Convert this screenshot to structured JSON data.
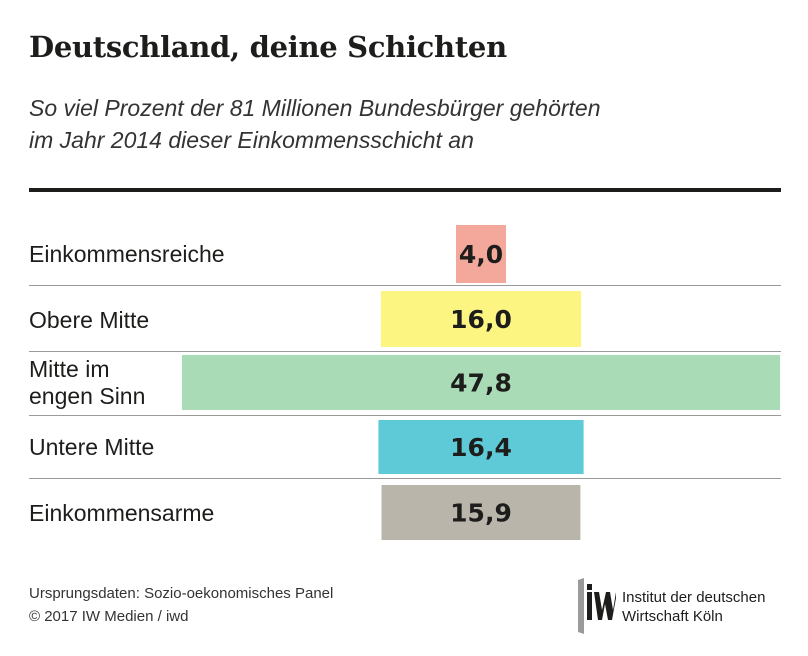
{
  "header": {
    "title": "Deutschland, deine Schichten",
    "subtitle_line1": "So viel Prozent der 81 Millionen Bundesbürger gehörten",
    "subtitle_line2": "im Jahr 2014 dieser Einkommensschicht an"
  },
  "chart_data": {
    "type": "bar",
    "orientation": "horizontal",
    "alignment": "centered",
    "title": "Deutschland, deine Schichten",
    "subtitle": "So viel Prozent der 81 Millionen Bundesbürger gehörten im Jahr 2014 dieser Einkommensschicht an",
    "categories": [
      "Einkommensreiche",
      "Obere Mitte",
      "Mitte im engen Sinn",
      "Untere Mitte",
      "Einkommensarme"
    ],
    "category_lines": [
      [
        "Einkommensreiche"
      ],
      [
        "Obere Mitte"
      ],
      [
        "Mitte im",
        "engen Sinn"
      ],
      [
        "Untere Mitte"
      ],
      [
        "Einkommensarme"
      ]
    ],
    "values": [
      4.0,
      16.0,
      47.8,
      16.4,
      15.9
    ],
    "value_labels": [
      "4,0",
      "16,0",
      "47,8",
      "16,4",
      "15,9"
    ],
    "colors": [
      "#f4a89c",
      "#fdf582",
      "#a9dcb6",
      "#5ecad8",
      "#b9b5aa"
    ],
    "xlim": [
      0,
      47.8
    ],
    "grid": false,
    "legend": "none"
  },
  "footer": {
    "source_line1": "Ursprungsdaten: Sozio-oekonomisches Panel",
    "source_line2": "© 2017 IW Medien / iwd",
    "logo_line1": "Institut der deutschen",
    "logo_line2": "Wirtschaft Köln"
  }
}
